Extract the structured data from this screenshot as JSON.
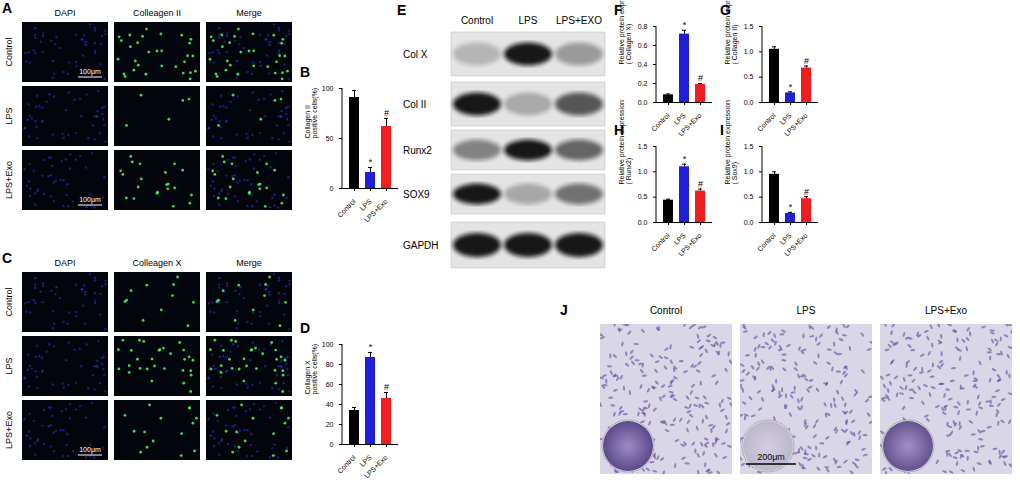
{
  "chart_data": [
    {
      "panel": "B",
      "type": "bar",
      "ylabel": "Collagen II\npositive cells(%)",
      "categories": [
        "Control",
        "LPS",
        "LPS+Exo"
      ],
      "values": [
        91,
        16,
        62
      ],
      "errors": [
        7,
        5,
        8
      ],
      "colors": [
        "#000000",
        "#1f1fd8",
        "#f01e1e"
      ],
      "annotations": [
        null,
        "*",
        "#"
      ],
      "ylim": [
        0,
        100
      ],
      "yticks": [
        0,
        50,
        100
      ]
    },
    {
      "panel": "D",
      "type": "bar",
      "ylabel": "Collagen X\npositive cells(%)",
      "categories": [
        "Control",
        "LPS",
        "LPS+Exo"
      ],
      "values": [
        34,
        87,
        46
      ],
      "errors": [
        3,
        5,
        6
      ],
      "colors": [
        "#000000",
        "#1f1fd8",
        "#f01e1e"
      ],
      "annotations": [
        null,
        "*",
        "#"
      ],
      "ylim": [
        0,
        100
      ],
      "yticks": [
        0,
        20,
        40,
        60,
        80,
        100
      ]
    },
    {
      "panel": "F",
      "type": "bar",
      "ylabel": "Relative protein expression\n( Collagen X)",
      "categories": [
        "Control",
        "LPS",
        "LPS+Exo"
      ],
      "values": [
        0.08,
        0.72,
        0.19
      ],
      "errors": [
        0.01,
        0.04,
        0.01
      ],
      "colors": [
        "#000000",
        "#1f1fd8",
        "#f01e1e"
      ],
      "annotations": [
        null,
        "*",
        "#"
      ],
      "ylim": [
        0,
        0.8
      ],
      "yticks": [
        {
          "value": 0,
          "label": "0.0"
        },
        0.2,
        0.4,
        0.6,
        0.8
      ]
    },
    {
      "panel": "G",
      "type": "bar",
      "ylabel": "Relative protein expression\n( Collagen II)",
      "categories": [
        "Control",
        "LPS",
        "LPS+Exo"
      ],
      "values": [
        1.05,
        0.19,
        0.68
      ],
      "errors": [
        0.05,
        0.02,
        0.04
      ],
      "colors": [
        "#000000",
        "#1f1fd8",
        "#f01e1e"
      ],
      "annotations": [
        null,
        "*",
        "#"
      ],
      "ylim": [
        0,
        1.5
      ],
      "yticks": [
        {
          "value": 0,
          "label": "0.0"
        },
        0.5,
        {
          "value": 1,
          "label": "1.0"
        },
        1.5
      ]
    },
    {
      "panel": "H",
      "type": "bar",
      "ylabel": "Relative protein expression\n( Runx2)",
      "categories": [
        "Control",
        "LPS",
        "LPS+Exo"
      ],
      "values": [
        0.44,
        1.1,
        0.62
      ],
      "errors": [
        0.02,
        0.05,
        0.04
      ],
      "colors": [
        "#000000",
        "#1f1fd8",
        "#f01e1e"
      ],
      "annotations": [
        null,
        "*",
        "#"
      ],
      "ylim": [
        0,
        1.5
      ],
      "yticks": [
        {
          "value": 0,
          "label": "0.0"
        },
        0.5,
        {
          "value": 1,
          "label": "1.0"
        },
        1.5
      ]
    },
    {
      "panel": "I",
      "type": "bar",
      "ylabel": "Relative protein expression\n( Sox9)",
      "categories": [
        "Control",
        "LPS",
        "LPS+Exo"
      ],
      "values": [
        0.95,
        0.18,
        0.47
      ],
      "errors": [
        0.05,
        0.02,
        0.04
      ],
      "colors": [
        "#000000",
        "#1f1fd8",
        "#f01e1e"
      ],
      "annotations": [
        null,
        "*",
        "#"
      ],
      "ylim": [
        0,
        1.5
      ],
      "yticks": [
        {
          "value": 0,
          "label": "0.0"
        },
        0.5,
        {
          "value": 1,
          "label": "1.0"
        },
        1.5
      ]
    }
  ],
  "panels": {
    "A": {
      "label": "A",
      "columns": [
        "DAPI",
        "Colleagen II",
        "Merge"
      ],
      "rows": [
        {
          "label": "Control",
          "scale_bar": "100μm"
        },
        {
          "label": "LPS"
        },
        {
          "label": "LPS+Exo",
          "scale_bar": "100μm"
        }
      ]
    },
    "C": {
      "label": "C",
      "columns": [
        "DAPI",
        "Colleagen X",
        "Merge"
      ],
      "rows": [
        {
          "label": "Control"
        },
        {
          "label": "LPS"
        },
        {
          "label": "LPS+Exo",
          "scale_bar": "100μm"
        }
      ]
    },
    "E": {
      "label": "E",
      "columns": [
        "Control",
        "LPS",
        "LPS+EXO"
      ],
      "rows": [
        "Col X",
        "Col II",
        "Runx2",
        "SOX9",
        "GAPDH"
      ]
    },
    "J": {
      "label": "J",
      "columns": [
        "Control",
        "LPS",
        "LPS+Exo"
      ],
      "scale_bar": "200μm"
    }
  }
}
